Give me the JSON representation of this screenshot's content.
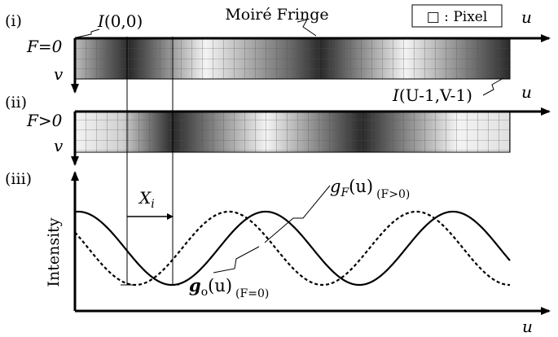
{
  "panels": {
    "i": "(i)",
    "ii": "(ii)",
    "iii": "(iii)"
  },
  "labels": {
    "moire_fringe": "Moiré Fringe",
    "pixel_legend": "□ : Pixel",
    "i00_I": "I",
    "i00_args": "(0,0)",
    "iend_I": "I",
    "iend_args": "(U-1,V-1)",
    "F_eq": "F=0",
    "F_gt": "F>0",
    "u": "u",
    "v": "v",
    "Xi_X": "X",
    "Xi_sub": "i",
    "gF_g": "g",
    "gF_sub": "F",
    "gF_arg": "(u)",
    "gF_cond": "(F>0)",
    "go_g": "g",
    "go_sub": "o",
    "go_arg": "(u)",
    "go_cond": "(F=0)",
    "intensity": "Intensity"
  },
  "colors": {
    "ink": "#000000",
    "dark": "#2a2a2a",
    "light": "#f4f4f4"
  }
}
